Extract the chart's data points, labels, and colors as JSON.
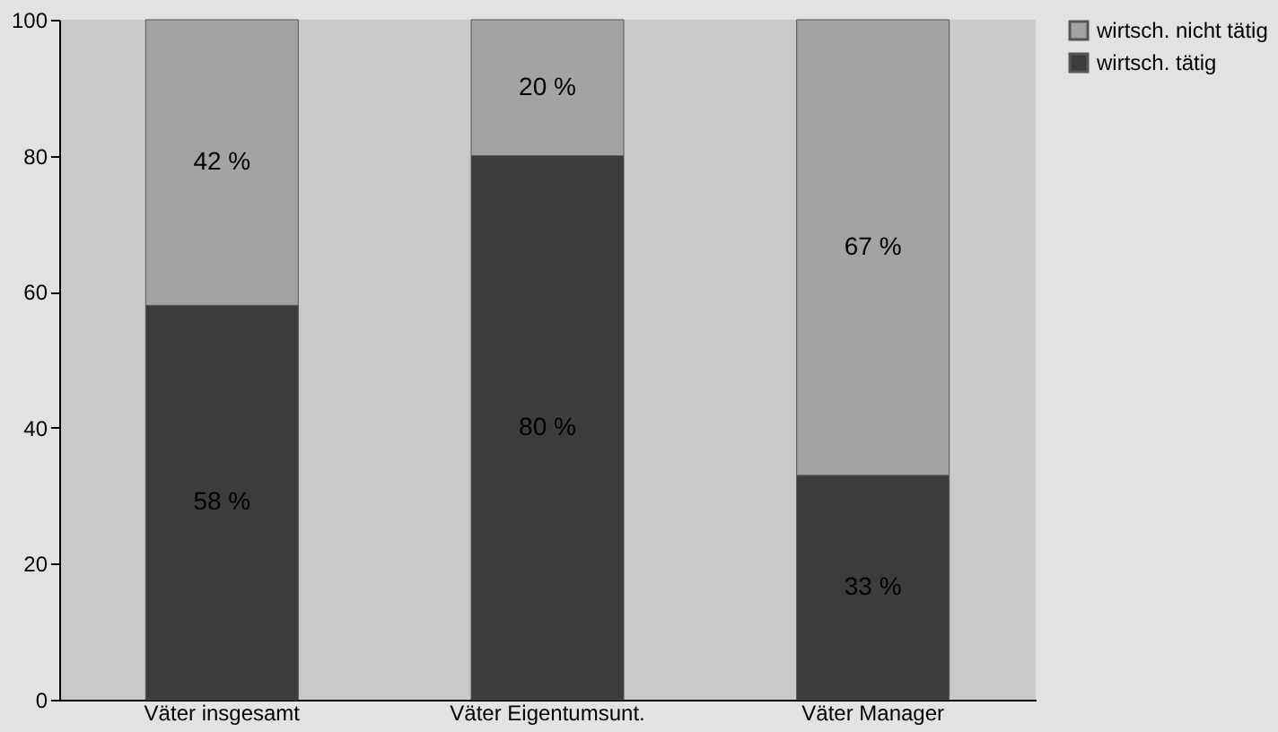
{
  "chart_data": {
    "type": "bar",
    "stacked": true,
    "categories": [
      "Väter insgesamt",
      "Väter Eigentumsunt.",
      "Väter Manager"
    ],
    "series": [
      {
        "name": "wirtsch. tätig",
        "color": "#3c3c3c",
        "values": [
          58,
          80,
          33
        ],
        "value_labels": [
          "58 %",
          "80 %",
          "33 %"
        ]
      },
      {
        "name": "wirtsch. nicht tätig",
        "color": "#a3a3a3",
        "values": [
          42,
          20,
          67
        ],
        "value_labels": [
          "42 %",
          "20 %",
          "67 %"
        ]
      }
    ],
    "ylim": [
      0,
      100
    ],
    "yticks": [
      0,
      20,
      40,
      60,
      80,
      100
    ],
    "grid": false,
    "legend": "right"
  }
}
